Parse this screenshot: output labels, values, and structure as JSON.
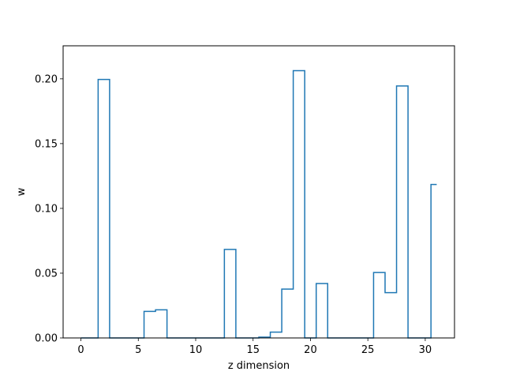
{
  "chart_data": {
    "type": "line",
    "drawstyle": "steps-mid",
    "title": "",
    "xlabel": "z dimension",
    "ylabel": "w",
    "xlim": [
      -1.55,
      32.55
    ],
    "ylim": [
      0.0,
      0.2255
    ],
    "xticks": [
      0,
      5,
      10,
      15,
      20,
      25,
      30
    ],
    "yticks": [
      0.0,
      0.05,
      0.1,
      0.15,
      0.2
    ],
    "ytick_labels": [
      "0.00",
      "0.05",
      "0.10",
      "0.15",
      "0.20"
    ],
    "grid": false,
    "color": "#1f77b4",
    "series": [
      {
        "x": [
          0,
          1,
          2,
          3,
          4,
          5,
          6,
          7,
          8,
          9,
          10,
          11,
          12,
          13,
          14,
          15,
          16,
          17,
          18,
          19,
          20,
          21,
          22,
          23,
          24,
          25,
          26,
          27,
          28,
          29,
          30,
          31
        ],
        "values": [
          0,
          0,
          0.1995,
          0,
          0,
          0,
          0.0205,
          0.0217,
          0,
          0,
          0,
          0,
          0,
          0.0683,
          0,
          0,
          0.0006,
          0.0045,
          0.0377,
          0.2063,
          0,
          0.042,
          0,
          0,
          0,
          0,
          0.0505,
          0.035,
          0.1945,
          0,
          0,
          0.1185
        ]
      }
    ]
  }
}
